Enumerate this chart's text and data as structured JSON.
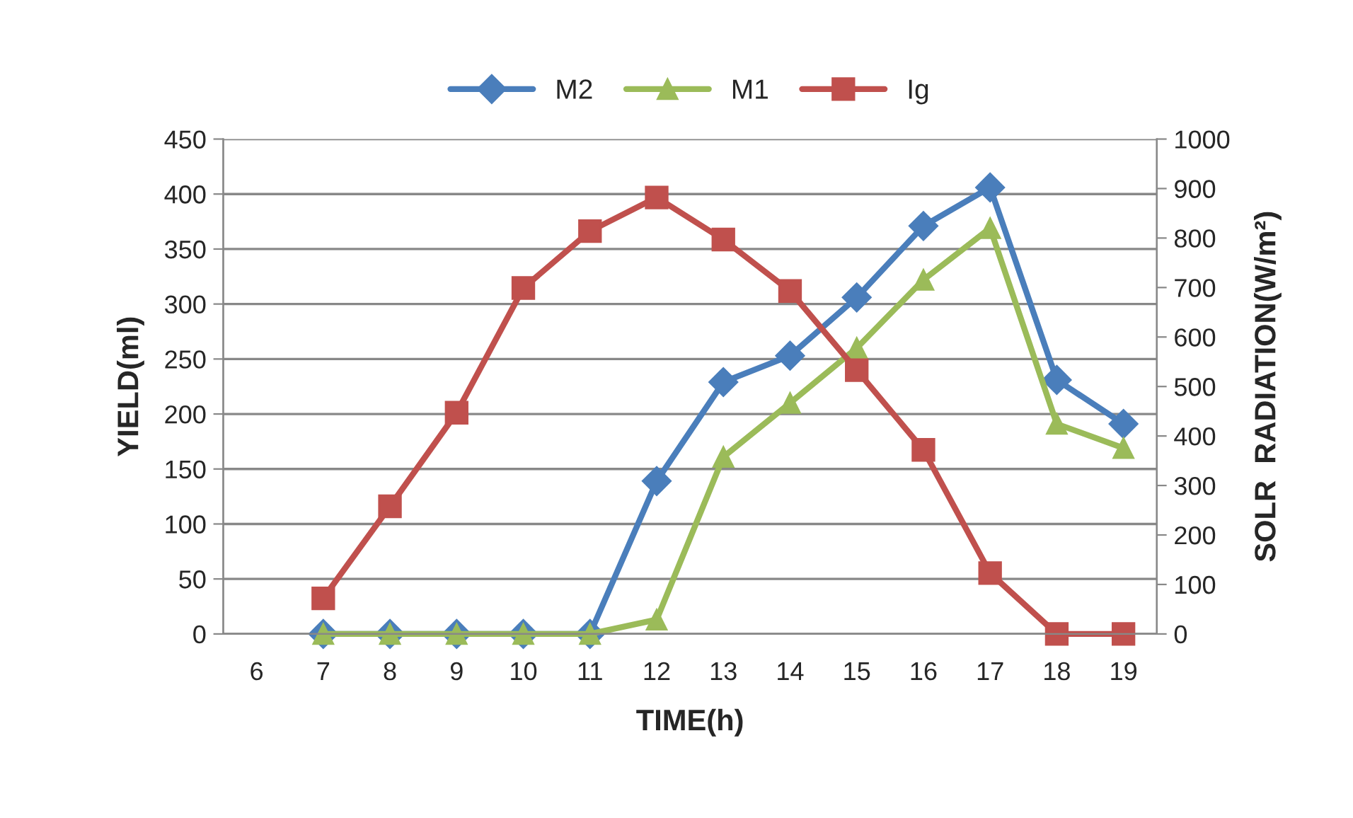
{
  "chart_data": {
    "type": "line",
    "xlabel": "TIME(h)",
    "ylabel": "YIELD(ml)",
    "y2label": "SOLR  RADIATION(W/m²)",
    "categories": [
      "6",
      "7",
      "8",
      "9",
      "10",
      "11",
      "12",
      "13",
      "14",
      "15",
      "16",
      "17",
      "18",
      "19"
    ],
    "series": [
      {
        "name": "M2",
        "color": "#4a7ebb",
        "marker": "diamond",
        "values": [
          null,
          0,
          0,
          0,
          0,
          0,
          139,
          229,
          253,
          306,
          371,
          406,
          231,
          191
        ]
      },
      {
        "name": "M1",
        "color": "#9bbb59",
        "marker": "triangle",
        "values": [
          null,
          0,
          0,
          0,
          0,
          0,
          13,
          161,
          210,
          260,
          322,
          369,
          191,
          169
        ]
      },
      {
        "name": "Ig",
        "color": "#c0504d",
        "marker": "square",
        "axis": "y2",
        "values": [
          null,
          72,
          258,
          447,
          699,
          814,
          882,
          797,
          693,
          533,
          372,
          123,
          0,
          0
        ]
      }
    ],
    "ylim": [
      0,
      450
    ],
    "yticks": [
      0,
      50,
      100,
      150,
      200,
      250,
      300,
      350,
      400,
      450
    ],
    "y2lim": [
      0,
      1000
    ],
    "y2ticks": [
      0,
      100,
      200,
      300,
      400,
      500,
      600,
      700,
      800,
      900,
      1000
    ],
    "grid": "y",
    "legend": "top"
  }
}
